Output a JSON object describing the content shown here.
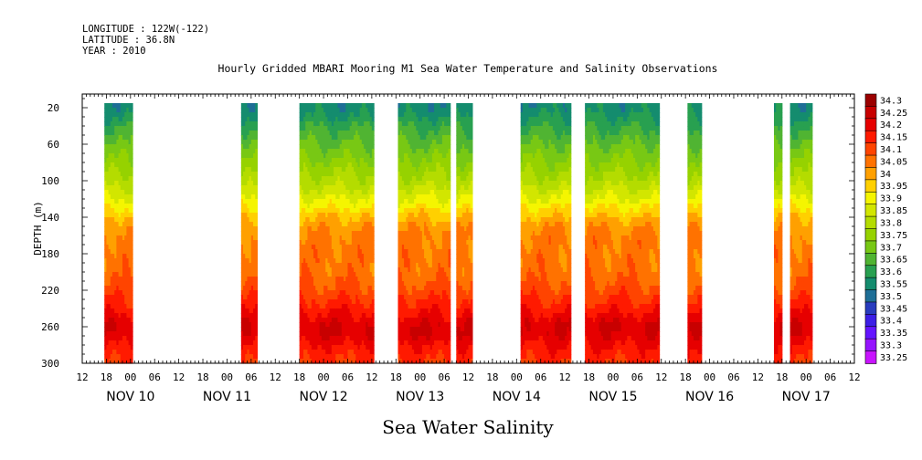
{
  "header": {
    "longitude": "LONGITUDE : 122W(-122)",
    "latitude": "LATITUDE : 36.8N",
    "year": "YEAR : 2010",
    "title": "Hourly Gridded MBARI Mooring M1 Sea Water Temperature and Salinity Observations"
  },
  "footer": {
    "variable": "Sea Water Salinity"
  },
  "chart_data": {
    "type": "heatmap",
    "title": "Hourly Gridded MBARI Mooring M1 Sea Water Temperature and Salinity Observations",
    "xlabel": "",
    "ylabel": "DEPTH (m)",
    "ylim": [
      300,
      5
    ],
    "xlim_hours_from_nov10_00": [
      -12,
      180
    ],
    "y_ticks": [
      20,
      60,
      100,
      140,
      180,
      220,
      260,
      300
    ],
    "x_hour_ticks": [
      "12",
      "18",
      "00",
      "06",
      "12",
      "18",
      "00",
      "06",
      "12",
      "18",
      "00",
      "06",
      "12",
      "18",
      "00",
      "06",
      "12",
      "18",
      "00",
      "06",
      "12",
      "18",
      "00",
      "06",
      "12",
      "18",
      "00",
      "06",
      "12",
      "18",
      "00",
      "06",
      "12"
    ],
    "x_day_labels": [
      "NOV 10",
      "NOV 11",
      "NOV 12",
      "NOV 13",
      "NOV 14",
      "NOV 15",
      "NOV 16",
      "NOV 17"
    ],
    "colorbar_levels": [
      "34.3",
      "34.25",
      "34.2",
      "34.15",
      "34.1",
      "34.05",
      "34",
      "33.95",
      "33.9",
      "33.85",
      "33.8",
      "33.75",
      "33.7",
      "33.65",
      "33.6",
      "33.55",
      "33.5",
      "33.45",
      "33.4",
      "33.35",
      "33.3",
      "33.25"
    ],
    "colorbar_colors": [
      "#9b0000",
      "#c80000",
      "#e60000",
      "#ff1a00",
      "#ff4400",
      "#ff7200",
      "#ffa000",
      "#ffd000",
      "#f5f500",
      "#d2e600",
      "#b4dc00",
      "#96d200",
      "#78c814",
      "#50b432",
      "#28a050",
      "#148c6e",
      "#1e6e96",
      "#283cbe",
      "#3c1ee6",
      "#6414ff",
      "#9614ff",
      "#c814ff"
    ],
    "data_blocks_hours_from_nov10_00": [
      [
        -6.5,
        0.5
      ],
      [
        27.5,
        31.5
      ],
      [
        42,
        60.5
      ],
      [
        66.5,
        79.5
      ],
      [
        81,
        85
      ],
      [
        97,
        109.5
      ],
      [
        113,
        131.5
      ],
      [
        138.5,
        142
      ],
      [
        160,
        162
      ],
      [
        164,
        169.5
      ]
    ],
    "profile_depth_m": [
      20,
      30,
      40,
      50,
      60,
      70,
      80,
      90,
      100,
      110,
      120,
      130,
      140,
      150,
      160,
      180,
      200,
      210,
      220,
      230,
      240,
      250,
      260,
      270,
      280,
      290,
      300
    ],
    "profile_salinity": [
      33.57,
      33.6,
      33.64,
      33.67,
      33.7,
      33.73,
      33.76,
      33.79,
      33.82,
      33.86,
      33.9,
      33.95,
      34.0,
      34.04,
      34.06,
      34.07,
      34.08,
      34.1,
      34.12,
      34.15,
      34.18,
      34.22,
      34.25,
      34.24,
      34.2,
      34.17,
      34.15
    ]
  }
}
